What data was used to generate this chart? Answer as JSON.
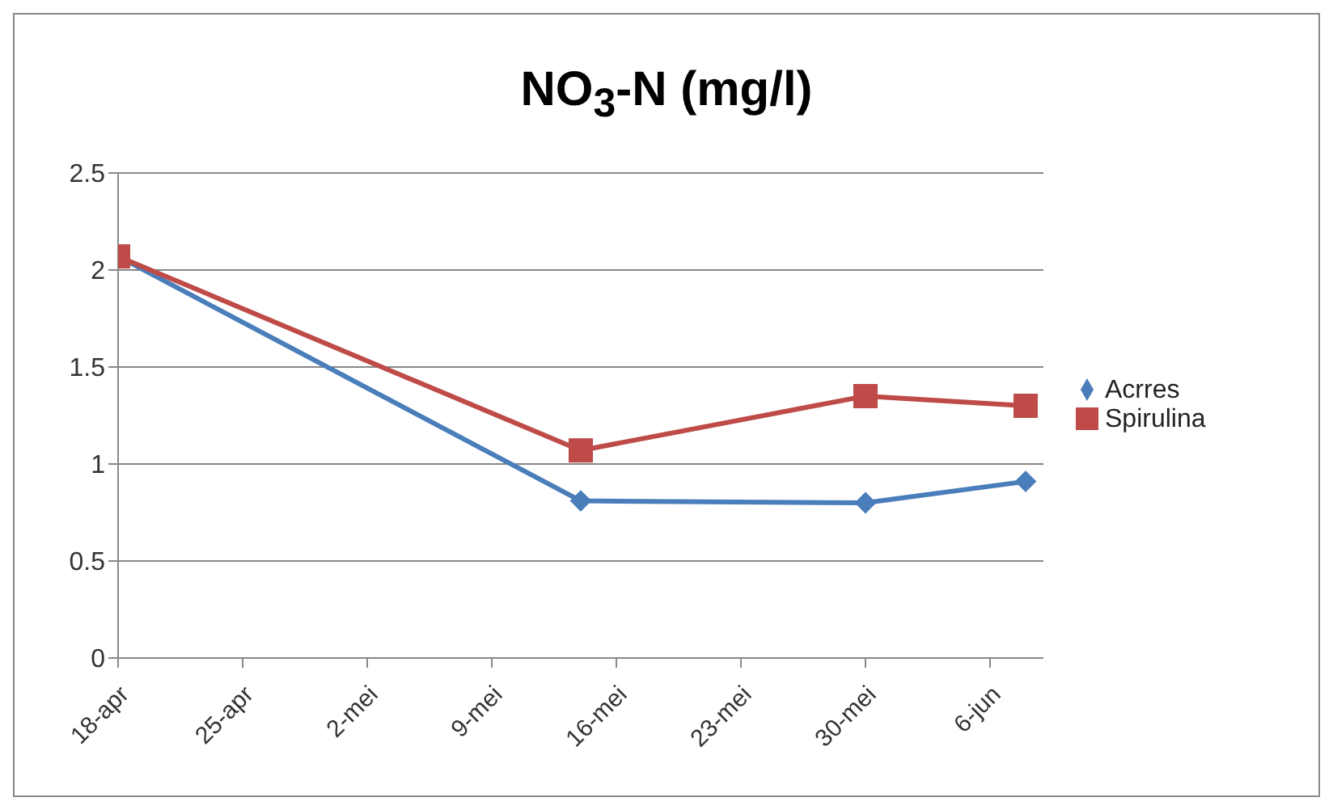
{
  "chart_data": {
    "type": "line",
    "title": "NO$_{3}$-N (mg/l)",
    "x": [
      "--04-18",
      "--05-14",
      "--05-30",
      "--06-08"
    ],
    "series": [
      {
        "name": "Acrres",
        "color": "#4a7ebb",
        "marker": "diamond",
        "values": [
          2.07,
          0.81,
          0.8,
          0.91
        ]
      },
      {
        "name": "Spirulina",
        "color": "#be4b48",
        "marker": "square",
        "values": [
          2.07,
          1.07,
          1.35,
          1.3
        ]
      }
    ],
    "xlim": [
      "--04-18",
      "--06-09"
    ],
    "xticks": [
      {
        "value": "--04-18",
        "label": "18-apr"
      },
      {
        "value": "--04-25",
        "label": "25-apr"
      },
      {
        "value": "--05-02",
        "label": "2-mei"
      },
      {
        "value": "--05-09",
        "label": "9-mei"
      },
      {
        "value": "--05-16",
        "label": "16-mei"
      },
      {
        "value": "--05-23",
        "label": "23-mei"
      },
      {
        "value": "--05-30",
        "label": "30-mei"
      },
      {
        "value": "--06-06",
        "label": "6-jun"
      }
    ],
    "ylim": [
      0,
      2.5
    ],
    "yticks": [
      0,
      0.5,
      1,
      1.5,
      2,
      2.5
    ],
    "grid": "y",
    "legend": "right",
    "line_style": "solid"
  }
}
